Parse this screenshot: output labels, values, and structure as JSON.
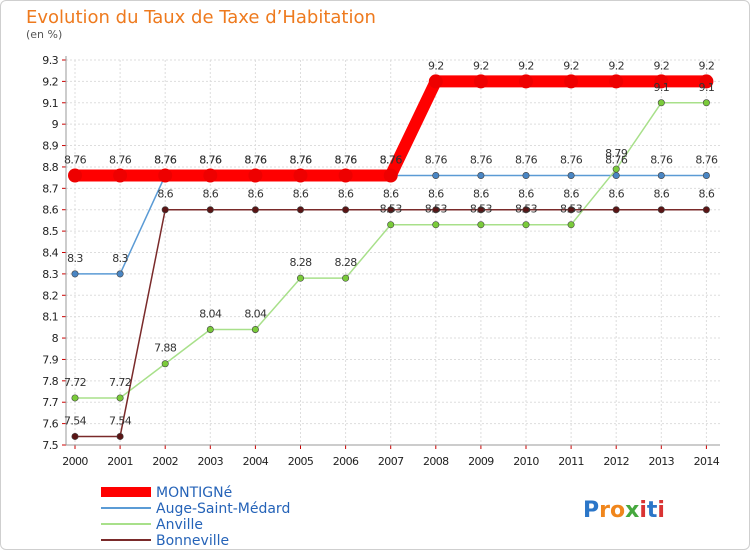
{
  "chart_data": {
    "type": "line",
    "title": "Evolution du Taux de Taxe d’Habitation",
    "subtitle": "(en %)",
    "xlabel": "",
    "ylabel": "",
    "ylim": [
      7.5,
      9.3
    ],
    "y_ticks": [
      "7.5",
      "7.6",
      "7.7",
      "7.8",
      "7.9",
      "8",
      "8.1",
      "8.2",
      "8.3",
      "8.4",
      "8.5",
      "8.6",
      "8.7",
      "8.8",
      "8.9",
      "9",
      "9.1",
      "9.2",
      "9.3"
    ],
    "categories": [
      "2000",
      "2001",
      "2002",
      "2003",
      "2004",
      "2005",
      "2006",
      "2007",
      "2008",
      "2009",
      "2010",
      "2011",
      "2012",
      "2013",
      "2014"
    ],
    "series": [
      {
        "name": "MONTIGNé",
        "color": "#ff0000",
        "point_color": "#ee0000",
        "values": [
          8.76,
          8.76,
          8.76,
          8.76,
          8.76,
          8.76,
          8.76,
          8.76,
          9.2,
          9.2,
          9.2,
          9.2,
          9.2,
          9.2,
          9.2
        ]
      },
      {
        "name": "Auge-Saint-Médard",
        "color": "#5b9bd5",
        "point_color": "#4a86c4",
        "values": [
          8.3,
          8.3,
          8.76,
          8.76,
          8.76,
          8.76,
          8.76,
          8.76,
          8.76,
          8.76,
          8.76,
          8.76,
          8.76,
          8.76,
          8.76
        ]
      },
      {
        "name": "Anville",
        "color": "#a8e08a",
        "point_color": "#7acb3a",
        "values": [
          7.72,
          7.72,
          7.88,
          8.04,
          8.04,
          8.28,
          8.28,
          8.53,
          8.53,
          8.53,
          8.53,
          8.53,
          8.79,
          9.1,
          9.1
        ]
      },
      {
        "name": "Bonneville",
        "color": "#7a2a2a",
        "point_color": "#5a1515",
        "values": [
          7.54,
          7.54,
          8.6,
          8.6,
          8.6,
          8.6,
          8.6,
          8.6,
          8.6,
          8.6,
          8.6,
          8.6,
          8.6,
          8.6,
          8.6
        ]
      }
    ],
    "grid": true,
    "legend_position": "bottom-left"
  },
  "logo": {
    "text": "Proxiti"
  }
}
